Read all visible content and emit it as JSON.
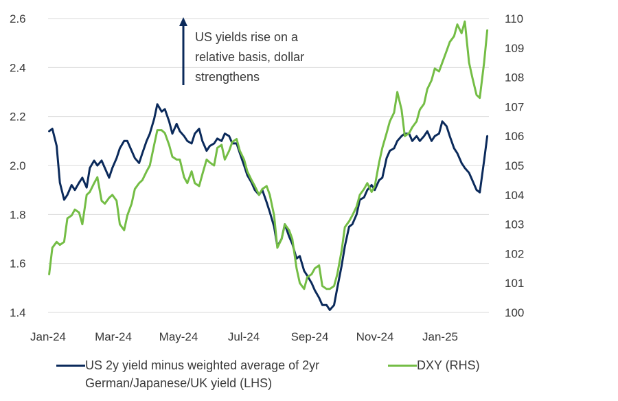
{
  "chart_data": {
    "type": "line",
    "x_ticks": [
      "Jan-24",
      "Mar-24",
      "May-24",
      "Jul-24",
      "Sep-24",
      "Nov-24",
      "Jan-25"
    ],
    "y_left": {
      "ticks": [
        "1.4",
        "1.6",
        "1.8",
        "2.0",
        "2.2",
        "2.4",
        "2.6"
      ],
      "ylim": [
        1.4,
        2.6
      ]
    },
    "y_right": {
      "ticks": [
        "100",
        "101",
        "102",
        "103",
        "104",
        "105",
        "106",
        "107",
        "108",
        "109",
        "110"
      ],
      "ylim": [
        100,
        110
      ]
    },
    "grid": "horizontal",
    "legend_position": "bottom",
    "annotation": {
      "lines": [
        "US yields rise on a",
        "relative basis, dollar",
        "strengthens"
      ]
    },
    "series": [
      {
        "name": "US 2y yield minus weighted average of 2yr German/Japanese/UK yield (LHS)",
        "name_lines": [
          "US 2y yield minus weighted average of 2yr",
          "German/Japanese/UK yield (LHS)"
        ],
        "axis": "left",
        "color": "#0b2a5b",
        "x": [
          "2024-01-02",
          "2024-01-05",
          "2024-01-09",
          "2024-01-12",
          "2024-01-16",
          "2024-01-19",
          "2024-01-23",
          "2024-01-26",
          "2024-01-30",
          "2024-02-02",
          "2024-02-06",
          "2024-02-09",
          "2024-02-13",
          "2024-02-16",
          "2024-02-20",
          "2024-02-23",
          "2024-02-27",
          "2024-03-01",
          "2024-03-05",
          "2024-03-08",
          "2024-03-12",
          "2024-03-15",
          "2024-03-19",
          "2024-03-22",
          "2024-03-26",
          "2024-03-29",
          "2024-04-02",
          "2024-04-05",
          "2024-04-09",
          "2024-04-12",
          "2024-04-16",
          "2024-04-19",
          "2024-04-23",
          "2024-04-26",
          "2024-04-30",
          "2024-05-03",
          "2024-05-07",
          "2024-05-10",
          "2024-05-14",
          "2024-05-17",
          "2024-05-21",
          "2024-05-24",
          "2024-05-28",
          "2024-05-31",
          "2024-06-04",
          "2024-06-07",
          "2024-06-11",
          "2024-06-14",
          "2024-06-18",
          "2024-06-21",
          "2024-06-25",
          "2024-06-28",
          "2024-07-02",
          "2024-07-05",
          "2024-07-09",
          "2024-07-12",
          "2024-07-16",
          "2024-07-19",
          "2024-07-23",
          "2024-07-26",
          "2024-07-30",
          "2024-08-02",
          "2024-08-06",
          "2024-08-09",
          "2024-08-13",
          "2024-08-16",
          "2024-08-20",
          "2024-08-23",
          "2024-08-27",
          "2024-08-30",
          "2024-09-03",
          "2024-09-06",
          "2024-09-10",
          "2024-09-13",
          "2024-09-17",
          "2024-09-20",
          "2024-09-24",
          "2024-09-27",
          "2024-10-01",
          "2024-10-04",
          "2024-10-08",
          "2024-10-11",
          "2024-10-15",
          "2024-10-18",
          "2024-10-22",
          "2024-10-25",
          "2024-10-29",
          "2024-11-01",
          "2024-11-05",
          "2024-11-08",
          "2024-11-12",
          "2024-11-15",
          "2024-11-19",
          "2024-11-22",
          "2024-11-26",
          "2024-11-29",
          "2024-12-03",
          "2024-12-06",
          "2024-12-10",
          "2024-12-13",
          "2024-12-17",
          "2024-12-20",
          "2024-12-24",
          "2024-12-27",
          "2024-12-31",
          "2025-01-03",
          "2025-01-07",
          "2025-01-10",
          "2025-01-14",
          "2025-01-17",
          "2025-01-21",
          "2025-01-24",
          "2025-01-28",
          "2025-01-31",
          "2025-02-04",
          "2025-02-07",
          "2025-02-11",
          "2025-02-14"
        ],
        "values": [
          2.14,
          2.15,
          2.08,
          1.93,
          1.86,
          1.88,
          1.92,
          1.9,
          1.93,
          1.95,
          1.91,
          1.99,
          2.02,
          2.0,
          2.02,
          1.99,
          1.95,
          1.99,
          2.03,
          2.07,
          2.1,
          2.1,
          2.06,
          2.03,
          2.01,
          2.05,
          2.1,
          2.13,
          2.19,
          2.25,
          2.22,
          2.23,
          2.18,
          2.13,
          2.17,
          2.14,
          2.12,
          2.1,
          2.09,
          2.13,
          2.15,
          2.1,
          2.06,
          2.08,
          2.09,
          2.11,
          2.1,
          2.13,
          2.12,
          2.09,
          2.09,
          2.05,
          2.0,
          1.96,
          1.93,
          1.9,
          1.88,
          1.9,
          1.85,
          1.81,
          1.75,
          1.67,
          1.7,
          1.76,
          1.71,
          1.68,
          1.62,
          1.63,
          1.57,
          1.55,
          1.52,
          1.49,
          1.46,
          1.43,
          1.43,
          1.41,
          1.43,
          1.5,
          1.59,
          1.67,
          1.75,
          1.76,
          1.8,
          1.86,
          1.87,
          1.9,
          1.92,
          1.9,
          1.94,
          1.95,
          2.03,
          2.06,
          2.07,
          2.1,
          2.12,
          2.13,
          2.13,
          2.1,
          2.12,
          2.1,
          2.12,
          2.14,
          2.1,
          2.12,
          2.13,
          2.18,
          2.16,
          2.12,
          2.07,
          2.05,
          2.01,
          1.99,
          1.97,
          1.94,
          1.9,
          1.89,
          2.02,
          2.12
        ]
      },
      {
        "name": "DXY (RHS)",
        "name_lines": [
          "DXY (RHS)"
        ],
        "axis": "right",
        "color": "#74bd45",
        "x": [
          "2024-01-02",
          "2024-01-05",
          "2024-01-09",
          "2024-01-12",
          "2024-01-16",
          "2024-01-19",
          "2024-01-23",
          "2024-01-26",
          "2024-01-30",
          "2024-02-02",
          "2024-02-06",
          "2024-02-09",
          "2024-02-13",
          "2024-02-16",
          "2024-02-20",
          "2024-02-23",
          "2024-02-27",
          "2024-03-01",
          "2024-03-05",
          "2024-03-08",
          "2024-03-12",
          "2024-03-15",
          "2024-03-19",
          "2024-03-22",
          "2024-03-26",
          "2024-03-29",
          "2024-04-02",
          "2024-04-05",
          "2024-04-09",
          "2024-04-12",
          "2024-04-16",
          "2024-04-19",
          "2024-04-23",
          "2024-04-26",
          "2024-04-30",
          "2024-05-03",
          "2024-05-07",
          "2024-05-10",
          "2024-05-14",
          "2024-05-17",
          "2024-05-21",
          "2024-05-24",
          "2024-05-28",
          "2024-05-31",
          "2024-06-04",
          "2024-06-07",
          "2024-06-11",
          "2024-06-14",
          "2024-06-18",
          "2024-06-21",
          "2024-06-25",
          "2024-06-28",
          "2024-07-02",
          "2024-07-05",
          "2024-07-09",
          "2024-07-12",
          "2024-07-16",
          "2024-07-19",
          "2024-07-23",
          "2024-07-26",
          "2024-07-30",
          "2024-08-02",
          "2024-08-06",
          "2024-08-09",
          "2024-08-13",
          "2024-08-16",
          "2024-08-20",
          "2024-08-23",
          "2024-08-27",
          "2024-08-30",
          "2024-09-03",
          "2024-09-06",
          "2024-09-10",
          "2024-09-13",
          "2024-09-17",
          "2024-09-20",
          "2024-09-24",
          "2024-09-27",
          "2024-10-01",
          "2024-10-04",
          "2024-10-08",
          "2024-10-11",
          "2024-10-15",
          "2024-10-18",
          "2024-10-22",
          "2024-10-25",
          "2024-10-29",
          "2024-11-01",
          "2024-11-05",
          "2024-11-08",
          "2024-11-12",
          "2024-11-15",
          "2024-11-19",
          "2024-11-22",
          "2024-11-26",
          "2024-11-29",
          "2024-12-03",
          "2024-12-06",
          "2024-12-10",
          "2024-12-13",
          "2024-12-17",
          "2024-12-20",
          "2024-12-24",
          "2024-12-27",
          "2024-12-31",
          "2025-01-03",
          "2025-01-07",
          "2025-01-10",
          "2025-01-14",
          "2025-01-17",
          "2025-01-21",
          "2025-01-24",
          "2025-01-28",
          "2025-01-31",
          "2025-02-04",
          "2025-02-07",
          "2025-02-11",
          "2025-02-14"
        ],
        "values": [
          101.3,
          102.2,
          102.4,
          102.3,
          102.4,
          103.2,
          103.3,
          103.5,
          103.4,
          103.0,
          104.0,
          104.1,
          104.4,
          104.6,
          103.8,
          103.7,
          103.9,
          104.0,
          103.8,
          103.0,
          102.8,
          103.3,
          103.7,
          104.2,
          104.4,
          104.5,
          104.8,
          105.0,
          105.7,
          106.2,
          106.2,
          106.1,
          105.7,
          105.3,
          105.2,
          105.2,
          104.6,
          104.4,
          104.8,
          104.4,
          104.3,
          104.7,
          105.2,
          105.1,
          105.0,
          105.6,
          105.7,
          105.2,
          105.5,
          105.8,
          105.9,
          105.5,
          105.2,
          104.8,
          104.5,
          104.3,
          104.0,
          104.2,
          104.3,
          104.0,
          103.3,
          102.2,
          102.5,
          103.0,
          102.8,
          102.5,
          101.5,
          101.0,
          100.8,
          101.2,
          101.3,
          101.5,
          101.6,
          100.9,
          100.8,
          100.8,
          100.9,
          101.3,
          102.1,
          102.9,
          103.1,
          103.3,
          103.6,
          104.0,
          104.2,
          104.4,
          104.1,
          104.3,
          105.1,
          105.6,
          106.1,
          106.5,
          106.8,
          107.5,
          106.9,
          106.0,
          106.1,
          106.3,
          106.5,
          106.9,
          107.1,
          107.6,
          107.9,
          108.3,
          108.2,
          108.5,
          108.9,
          109.2,
          109.4,
          109.8,
          109.5,
          109.9,
          108.5,
          108.0,
          107.4,
          107.3,
          108.5,
          109.6
        ]
      }
    ]
  }
}
